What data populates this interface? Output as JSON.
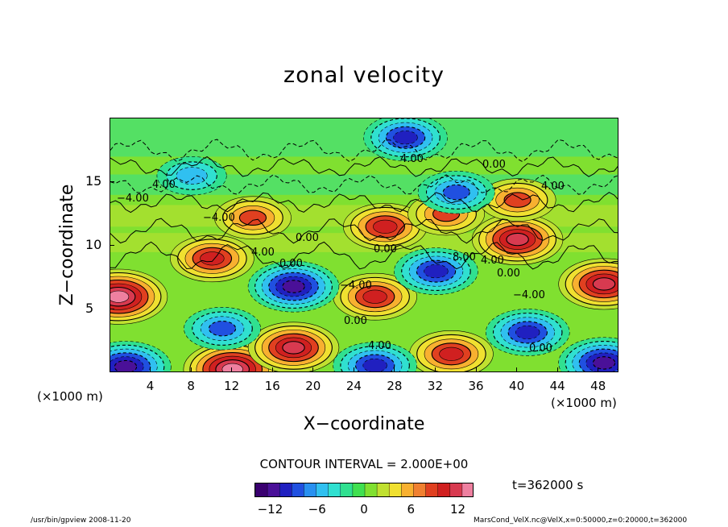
{
  "chart_data": {
    "type": "heatmap",
    "title": "zonal velocity",
    "xlabel": "X−coordinate",
    "ylabel": "Z−coordinate",
    "x_unit_label": "(×1000 m)",
    "x_ticks": [
      "4",
      "8",
      "12",
      "16",
      "20",
      "24",
      "28",
      "32",
      "36",
      "40",
      "44",
      "48"
    ],
    "y_ticks": [
      "5",
      "10",
      "15"
    ],
    "xlim": [
      0,
      50
    ],
    "ylim": [
      0,
      20
    ],
    "contour_interval_label": "CONTOUR INTERVAL = 2.000E+00",
    "contour_interval": 2.0,
    "contour_labels": [
      "4.00",
      "−4.00",
      "0.00",
      "4.00",
      "0.00",
      "−4.00",
      "0.00",
      "4.00",
      "0.00",
      "8.00",
      "4.00",
      "0.00",
      "−4.00",
      "0.00",
      "4.00",
      "4.00",
      "0.00",
      "−4.00"
    ],
    "colorbar": {
      "min": -14,
      "max": 14,
      "ticks": [
        "−12",
        "−6",
        "0",
        "6",
        "12"
      ],
      "colors": [
        "#3a0070",
        "#4a1098",
        "#2020c0",
        "#2050e0",
        "#2890f0",
        "#30c0f0",
        "#30e0d0",
        "#30e090",
        "#40e050",
        "#80e030",
        "#c0e030",
        "#f0e030",
        "#f8b030",
        "#f08030",
        "#e04020",
        "#d02020",
        "#d83a50",
        "#ee80a0"
      ]
    },
    "features": [
      {
        "x": 0.8,
        "z": 6.0,
        "value": 14
      },
      {
        "x": 12.0,
        "z": 0.3,
        "value": 14
      },
      {
        "x": 18.0,
        "z": 2.0,
        "value": 12
      },
      {
        "x": 26.0,
        "z": 6.0,
        "value": 10
      },
      {
        "x": 27.0,
        "z": 11.5,
        "value": 10
      },
      {
        "x": 33.0,
        "z": 12.5,
        "value": 8
      },
      {
        "x": 40.0,
        "z": 10.5,
        "value": 12
      },
      {
        "x": 48.5,
        "z": 7.0,
        "value": 12
      },
      {
        "x": 33.5,
        "z": 1.5,
        "value": 10
      },
      {
        "x": 10.0,
        "z": 9.0,
        "value": 10
      },
      {
        "x": 14.0,
        "z": 12.2,
        "value": 8
      },
      {
        "x": 40.0,
        "z": 13.6,
        "value": 8
      },
      {
        "x": 18.0,
        "z": 6.8,
        "value": -12
      },
      {
        "x": 32.0,
        "z": 8.0,
        "value": -10
      },
      {
        "x": 41.0,
        "z": 3.2,
        "value": -10
      },
      {
        "x": 1.5,
        "z": 0.5,
        "value": -12
      },
      {
        "x": 48.5,
        "z": 0.8,
        "value": -12
      },
      {
        "x": 26.0,
        "z": 0.6,
        "value": -10
      },
      {
        "x": 11.0,
        "z": 3.5,
        "value": -8
      },
      {
        "x": 29.0,
        "z": 18.5,
        "value": -10
      },
      {
        "x": 34.0,
        "z": 14.2,
        "value": -8
      },
      {
        "x": 8.0,
        "z": 15.5,
        "value": -6
      }
    ],
    "time_label": "t=362000 s"
  },
  "footer": {
    "left": "/usr/bin/gpview   2008-11-20",
    "right": "MarsCond_VelX.nc@VelX,x=0:50000,z=0:20000,t=362000"
  }
}
